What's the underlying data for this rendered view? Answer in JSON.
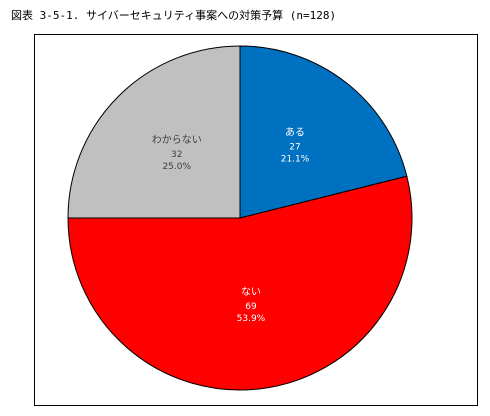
{
  "title": "図表 3-5-1. サイバーセキュリティ事案への対策予算 (n=128)",
  "chart_data": {
    "type": "pie",
    "title": "図表 3-5-1. サイバーセキュリティ事案への対策予算 (n=128)",
    "n": 128,
    "start_angle_deg": 0,
    "direction": "clockwise",
    "slices": [
      {
        "label": "ある",
        "count": "27",
        "percent": "21.1%",
        "value": 27,
        "color": "#0070c0",
        "text_color": "#ffffff"
      },
      {
        "label": "ない",
        "count": "69",
        "percent": "53.9%",
        "value": 69,
        "color": "#ff0000",
        "text_color": "#ffffff"
      },
      {
        "label": "わからない",
        "count": "32",
        "percent": "25.0%",
        "value": 32,
        "color": "#c0c0c0",
        "text_color": "#404040"
      }
    ]
  }
}
